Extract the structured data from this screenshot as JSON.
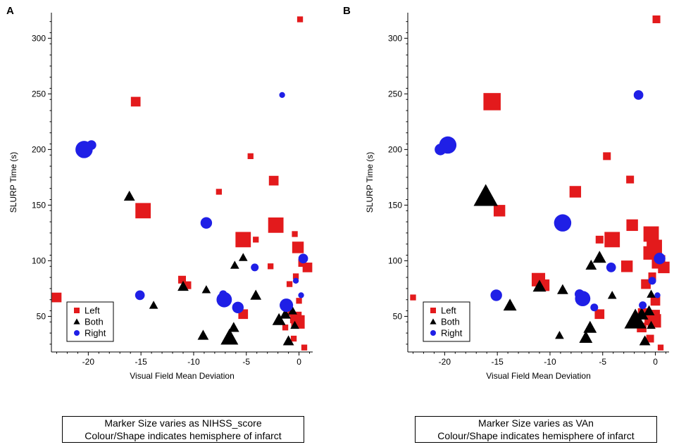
{
  "panels": [
    {
      "label": "A",
      "caption_line1": "Marker Size varies as NIHSS_score",
      "caption_line2": "Colour/Shape indicates hemisphere of infarct"
    },
    {
      "label": "B",
      "caption_line1": "Marker Size varies as VAn",
      "caption_line2": "Colour/Shape indicates hemisphere of infarct"
    }
  ],
  "colors": {
    "Left": "#e31a1c",
    "Both": "#000000",
    "Right": "#1f1fe6"
  },
  "chart_data": [
    {
      "type": "scatter",
      "title": "",
      "xlabel": "Visual Field Mean Deviation",
      "ylabel": "SLURP Time (s)",
      "xlim": [
        -23.5,
        1.3
      ],
      "ylim": [
        18,
        323
      ],
      "xticks": [
        -20,
        -15,
        -10,
        -5,
        0
      ],
      "yticks": [
        50,
        100,
        150,
        200,
        250,
        300
      ],
      "legend": {
        "location": "bottom-left",
        "entries": [
          "Left",
          "Both",
          "Right"
        ]
      },
      "size_variable": "NIHSS_score",
      "series": [
        {
          "name": "Left",
          "marker": "square",
          "points": [
            {
              "x": 0.1,
              "y": 317,
              "s": 1
            },
            {
              "x": -15.5,
              "y": 243,
              "s": 3
            },
            {
              "x": -4.6,
              "y": 194,
              "s": 1
            },
            {
              "x": -2.4,
              "y": 172,
              "s": 3
            },
            {
              "x": -7.6,
              "y": 162,
              "s": 1
            },
            {
              "x": -14.8,
              "y": 145,
              "s": 6
            },
            {
              "x": -2.2,
              "y": 132,
              "s": 6
            },
            {
              "x": -0.4,
              "y": 124,
              "s": 1
            },
            {
              "x": -5.3,
              "y": 119,
              "s": 6
            },
            {
              "x": -4.1,
              "y": 119,
              "s": 1
            },
            {
              "x": -0.1,
              "y": 112,
              "s": 4
            },
            {
              "x": 0.3,
              "y": 98,
              "s": 2
            },
            {
              "x": 0.8,
              "y": 94,
              "s": 3
            },
            {
              "x": -2.7,
              "y": 95,
              "s": 1
            },
            {
              "x": -0.3,
              "y": 86,
              "s": 1
            },
            {
              "x": -11.1,
              "y": 83,
              "s": 2
            },
            {
              "x": -10.6,
              "y": 78,
              "s": 2
            },
            {
              "x": -0.9,
              "y": 79,
              "s": 1
            },
            {
              "x": -23.0,
              "y": 67,
              "s": 3
            },
            {
              "x": 0.0,
              "y": 64,
              "s": 1
            },
            {
              "x": -5.3,
              "y": 52,
              "s": 3
            },
            {
              "x": -0.8,
              "y": 53,
              "s": 1
            },
            {
              "x": -0.3,
              "y": 49,
              "s": 4
            },
            {
              "x": -0.1,
              "y": 45,
              "s": 5
            },
            {
              "x": -1.3,
              "y": 40,
              "s": 1
            },
            {
              "x": -0.5,
              "y": 30,
              "s": 1
            },
            {
              "x": 0.5,
              "y": 22,
              "s": 1
            }
          ]
        },
        {
          "name": "Both",
          "marker": "triangle",
          "points": [
            {
              "x": -16.1,
              "y": 158,
              "s": 3
            },
            {
              "x": -5.3,
              "y": 103,
              "s": 2
            },
            {
              "x": -6.1,
              "y": 96,
              "s": 2
            },
            {
              "x": -11.0,
              "y": 77,
              "s": 3
            },
            {
              "x": -8.8,
              "y": 74,
              "s": 2
            },
            {
              "x": -4.1,
              "y": 69,
              "s": 3
            },
            {
              "x": -13.8,
              "y": 60,
              "s": 2
            },
            {
              "x": -0.6,
              "y": 55,
              "s": 2
            },
            {
              "x": -1.3,
              "y": 52,
              "s": 3
            },
            {
              "x": -1.9,
              "y": 47,
              "s": 4
            },
            {
              "x": -0.4,
              "y": 42,
              "s": 2
            },
            {
              "x": -6.2,
              "y": 40,
              "s": 3
            },
            {
              "x": -9.1,
              "y": 33,
              "s": 3
            },
            {
              "x": -6.6,
              "y": 31,
              "s": 6
            },
            {
              "x": -1.0,
              "y": 28,
              "s": 3
            }
          ]
        },
        {
          "name": "Right",
          "marker": "circle",
          "points": [
            {
              "x": -1.6,
              "y": 249,
              "s": 1
            },
            {
              "x": -19.7,
              "y": 204,
              "s": 3
            },
            {
              "x": -20.4,
              "y": 200,
              "s": 7
            },
            {
              "x": -8.8,
              "y": 134,
              "s": 4
            },
            {
              "x": 0.4,
              "y": 102,
              "s": 3
            },
            {
              "x": -4.2,
              "y": 94,
              "s": 2
            },
            {
              "x": -0.3,
              "y": 82,
              "s": 1
            },
            {
              "x": -15.1,
              "y": 69,
              "s": 3
            },
            {
              "x": 0.2,
              "y": 69,
              "s": 1
            },
            {
              "x": -7.2,
              "y": 70,
              "s": 2
            },
            {
              "x": -7.1,
              "y": 65,
              "s": 6
            },
            {
              "x": -1.2,
              "y": 60,
              "s": 5
            },
            {
              "x": -5.8,
              "y": 58,
              "s": 4
            }
          ]
        }
      ]
    },
    {
      "type": "scatter",
      "title": "",
      "xlabel": "Visual Field Mean Deviation",
      "ylabel": "SLURP Time (s)",
      "xlim": [
        -23.5,
        1.3
      ],
      "ylim": [
        18,
        323
      ],
      "xticks": [
        -20,
        -15,
        -10,
        -5,
        0
      ],
      "yticks": [
        50,
        100,
        150,
        200,
        250,
        300
      ],
      "legend": {
        "location": "bottom-left",
        "entries": [
          "Left",
          "Both",
          "Right"
        ]
      },
      "size_variable": "VAn",
      "series": [
        {
          "name": "Left",
          "marker": "square",
          "points": [
            {
              "x": 0.1,
              "y": 317,
              "s": 2
            },
            {
              "x": -15.5,
              "y": 243,
              "s": 7
            },
            {
              "x": -4.6,
              "y": 194,
              "s": 2
            },
            {
              "x": -2.4,
              "y": 173,
              "s": 2
            },
            {
              "x": -7.6,
              "y": 162,
              "s": 4
            },
            {
              "x": -14.8,
              "y": 145,
              "s": 4
            },
            {
              "x": -2.2,
              "y": 132,
              "s": 4
            },
            {
              "x": -0.4,
              "y": 124,
              "s": 6
            },
            {
              "x": -5.3,
              "y": 119,
              "s": 2
            },
            {
              "x": -4.1,
              "y": 119,
              "s": 6
            },
            {
              "x": -0.1,
              "y": 112,
              "s": 6
            },
            {
              "x": -0.5,
              "y": 107,
              "s": 5
            },
            {
              "x": 0.3,
              "y": 99,
              "s": 5
            },
            {
              "x": 0.8,
              "y": 94,
              "s": 4
            },
            {
              "x": -2.7,
              "y": 95,
              "s": 4
            },
            {
              "x": -0.3,
              "y": 86,
              "s": 2
            },
            {
              "x": -11.1,
              "y": 83,
              "s": 5
            },
            {
              "x": -10.6,
              "y": 78,
              "s": 4
            },
            {
              "x": -0.9,
              "y": 79,
              "s": 3
            },
            {
              "x": -23.0,
              "y": 67,
              "s": 1
            },
            {
              "x": 0.0,
              "y": 64,
              "s": 3
            },
            {
              "x": -5.3,
              "y": 52,
              "s": 3
            },
            {
              "x": -1.2,
              "y": 53,
              "s": 3
            },
            {
              "x": -0.3,
              "y": 49,
              "s": 6
            },
            {
              "x": -0.1,
              "y": 46,
              "s": 5
            },
            {
              "x": -1.3,
              "y": 40,
              "s": 3
            },
            {
              "x": -0.5,
              "y": 30,
              "s": 2
            },
            {
              "x": 0.5,
              "y": 22,
              "s": 1
            }
          ]
        },
        {
          "name": "Both",
          "marker": "triangle",
          "points": [
            {
              "x": -16.1,
              "y": 158,
              "s": 9
            },
            {
              "x": -5.3,
              "y": 103,
              "s": 4
            },
            {
              "x": -6.1,
              "y": 96,
              "s": 3
            },
            {
              "x": -11.0,
              "y": 77,
              "s": 4
            },
            {
              "x": -8.8,
              "y": 74,
              "s": 3
            },
            {
              "x": -4.1,
              "y": 69,
              "s": 2
            },
            {
              "x": -13.8,
              "y": 60,
              "s": 4
            },
            {
              "x": -0.6,
              "y": 55,
              "s": 3
            },
            {
              "x": -0.4,
              "y": 70,
              "s": 2
            },
            {
              "x": -1.3,
              "y": 52,
              "s": 4
            },
            {
              "x": -1.9,
              "y": 47,
              "s": 8
            },
            {
              "x": -0.4,
              "y": 42,
              "s": 2
            },
            {
              "x": -6.2,
              "y": 40,
              "s": 4
            },
            {
              "x": -9.1,
              "y": 33,
              "s": 2
            },
            {
              "x": -6.6,
              "y": 31,
              "s": 4
            },
            {
              "x": -1.0,
              "y": 28,
              "s": 3
            }
          ]
        },
        {
          "name": "Right",
          "marker": "circle",
          "points": [
            {
              "x": -1.6,
              "y": 249,
              "s": 3
            },
            {
              "x": -19.7,
              "y": 204,
              "s": 7
            },
            {
              "x": -20.4,
              "y": 200,
              "s": 4
            },
            {
              "x": -8.8,
              "y": 134,
              "s": 7
            },
            {
              "x": 0.4,
              "y": 102,
              "s": 4
            },
            {
              "x": -4.2,
              "y": 94,
              "s": 3
            },
            {
              "x": -0.3,
              "y": 82,
              "s": 2
            },
            {
              "x": -15.1,
              "y": 69,
              "s": 4
            },
            {
              "x": 0.2,
              "y": 69,
              "s": 1
            },
            {
              "x": -7.2,
              "y": 70,
              "s": 3
            },
            {
              "x": -6.9,
              "y": 66,
              "s": 6
            },
            {
              "x": -1.2,
              "y": 60,
              "s": 2
            },
            {
              "x": -5.8,
              "y": 58,
              "s": 2
            }
          ]
        }
      ]
    }
  ]
}
